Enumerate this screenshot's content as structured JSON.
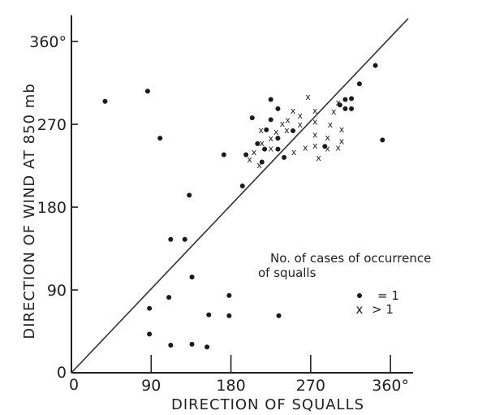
{
  "chart_data": {
    "type": "scatter",
    "xlabel": "DIRECTION OF SQUALLS",
    "ylabel": "DIRECTION OF WIND AT 850 mb",
    "xlim": [
      0,
      380
    ],
    "ylim": [
      0,
      385
    ],
    "x_ticks": [
      0,
      90,
      180,
      270,
      360
    ],
    "y_ticks": [
      0,
      90,
      180,
      270,
      360
    ],
    "x_tick_labels": [
      "0",
      "90",
      "180",
      "270",
      "360°"
    ],
    "y_tick_labels": [
      "0",
      "90",
      "180",
      "270",
      "360°"
    ],
    "diagonal": {
      "from": [
        0,
        0
      ],
      "to": [
        380,
        385
      ]
    },
    "legend": {
      "title": "No. of cases of occurrence of squalls",
      "entries": [
        {
          "symbol": "•",
          "label": "= 1"
        },
        {
          "symbol": "x",
          "label": "> 1"
        }
      ]
    },
    "series": [
      {
        "name": "= 1",
        "marker": "dot",
        "points": [
          [
            38,
            295
          ],
          [
            86,
            306
          ],
          [
            100,
            255
          ],
          [
            88,
            70
          ],
          [
            88,
            42
          ],
          [
            110,
            82
          ],
          [
            112,
            30
          ],
          [
            112,
            145
          ],
          [
            128,
            145
          ],
          [
            133,
            193
          ],
          [
            136,
            104
          ],
          [
            136,
            31
          ],
          [
            153,
            28
          ],
          [
            155,
            63
          ],
          [
            178,
            84
          ],
          [
            178,
            62
          ],
          [
            172,
            237
          ],
          [
            197,
            237
          ],
          [
            204,
            277
          ],
          [
            193,
            203
          ],
          [
            215,
            229
          ],
          [
            210,
            249
          ],
          [
            218,
            243
          ],
          [
            225,
            297
          ],
          [
            225,
            275
          ],
          [
            220,
            264
          ],
          [
            233,
            287
          ],
          [
            233,
            255
          ],
          [
            233,
            243
          ],
          [
            240,
            234
          ],
          [
            250,
            263
          ],
          [
            234,
            62
          ],
          [
            303,
            291
          ],
          [
            309,
            287
          ],
          [
            309,
            297
          ],
          [
            316,
            298
          ],
          [
            316,
            287
          ],
          [
            325,
            314
          ],
          [
            343,
            334
          ],
          [
            351,
            253
          ],
          [
            286,
            246
          ]
        ]
      },
      {
        "name": "> 1",
        "marker": "x",
        "points": [
          [
            201,
            232
          ],
          [
            206,
            240
          ],
          [
            214,
            264
          ],
          [
            215,
            250
          ],
          [
            212,
            226
          ],
          [
            225,
            255
          ],
          [
            225,
            244
          ],
          [
            231,
            262
          ],
          [
            238,
            271
          ],
          [
            243,
            264
          ],
          [
            244,
            275
          ],
          [
            250,
            285
          ],
          [
            251,
            240
          ],
          [
            258,
            280
          ],
          [
            258,
            270
          ],
          [
            264,
            245
          ],
          [
            275,
            285
          ],
          [
            275,
            273
          ],
          [
            275,
            259
          ],
          [
            275,
            247
          ],
          [
            267,
            300
          ],
          [
            279,
            234
          ],
          [
            289,
            256
          ],
          [
            289,
            244
          ],
          [
            305,
            265
          ],
          [
            305,
            252
          ],
          [
            292,
            270
          ],
          [
            296,
            284
          ],
          [
            301,
            294
          ],
          [
            301,
            245
          ]
        ]
      }
    ]
  }
}
